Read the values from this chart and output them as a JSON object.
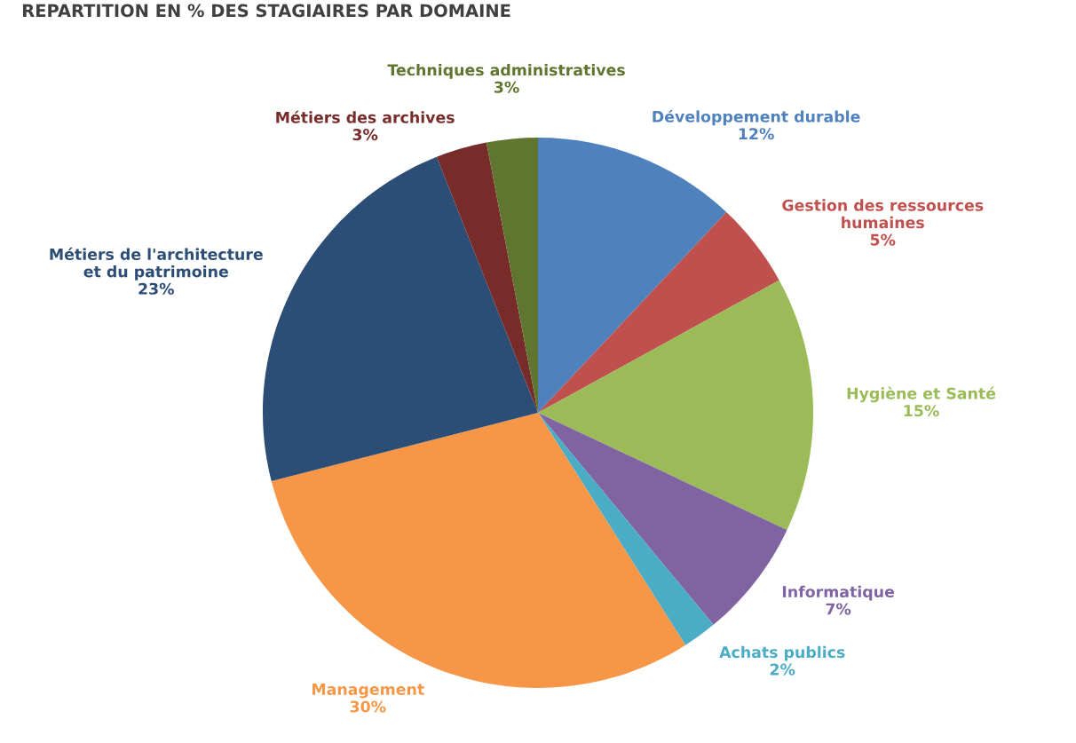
{
  "chart_data": {
    "type": "pie",
    "title": "REPARTITION EN % DES STAGIAIRES PAR DOMAINE",
    "categories": [
      "Développement durable",
      "Gestion des ressources humaines",
      "Hygiène et Santé",
      "Informatique",
      "Achats publics",
      "Management",
      "Métiers de l'architecture et du patrimoine",
      "Métiers des archives",
      "Techniques administratives"
    ],
    "values": [
      12,
      5,
      15,
      7,
      2,
      30,
      23,
      3,
      3
    ],
    "colors": [
      "#4f81bd",
      "#c0504d",
      "#9bbb59",
      "#8064a2",
      "#4bacc6",
      "#f79646",
      "#2c4d75",
      "#772c2a",
      "#5f7530"
    ],
    "value_labels": [
      "12%",
      "5%",
      "15%",
      "7%",
      "2%",
      "30%",
      "23%",
      "3%",
      "3%"
    ],
    "legend": false
  }
}
